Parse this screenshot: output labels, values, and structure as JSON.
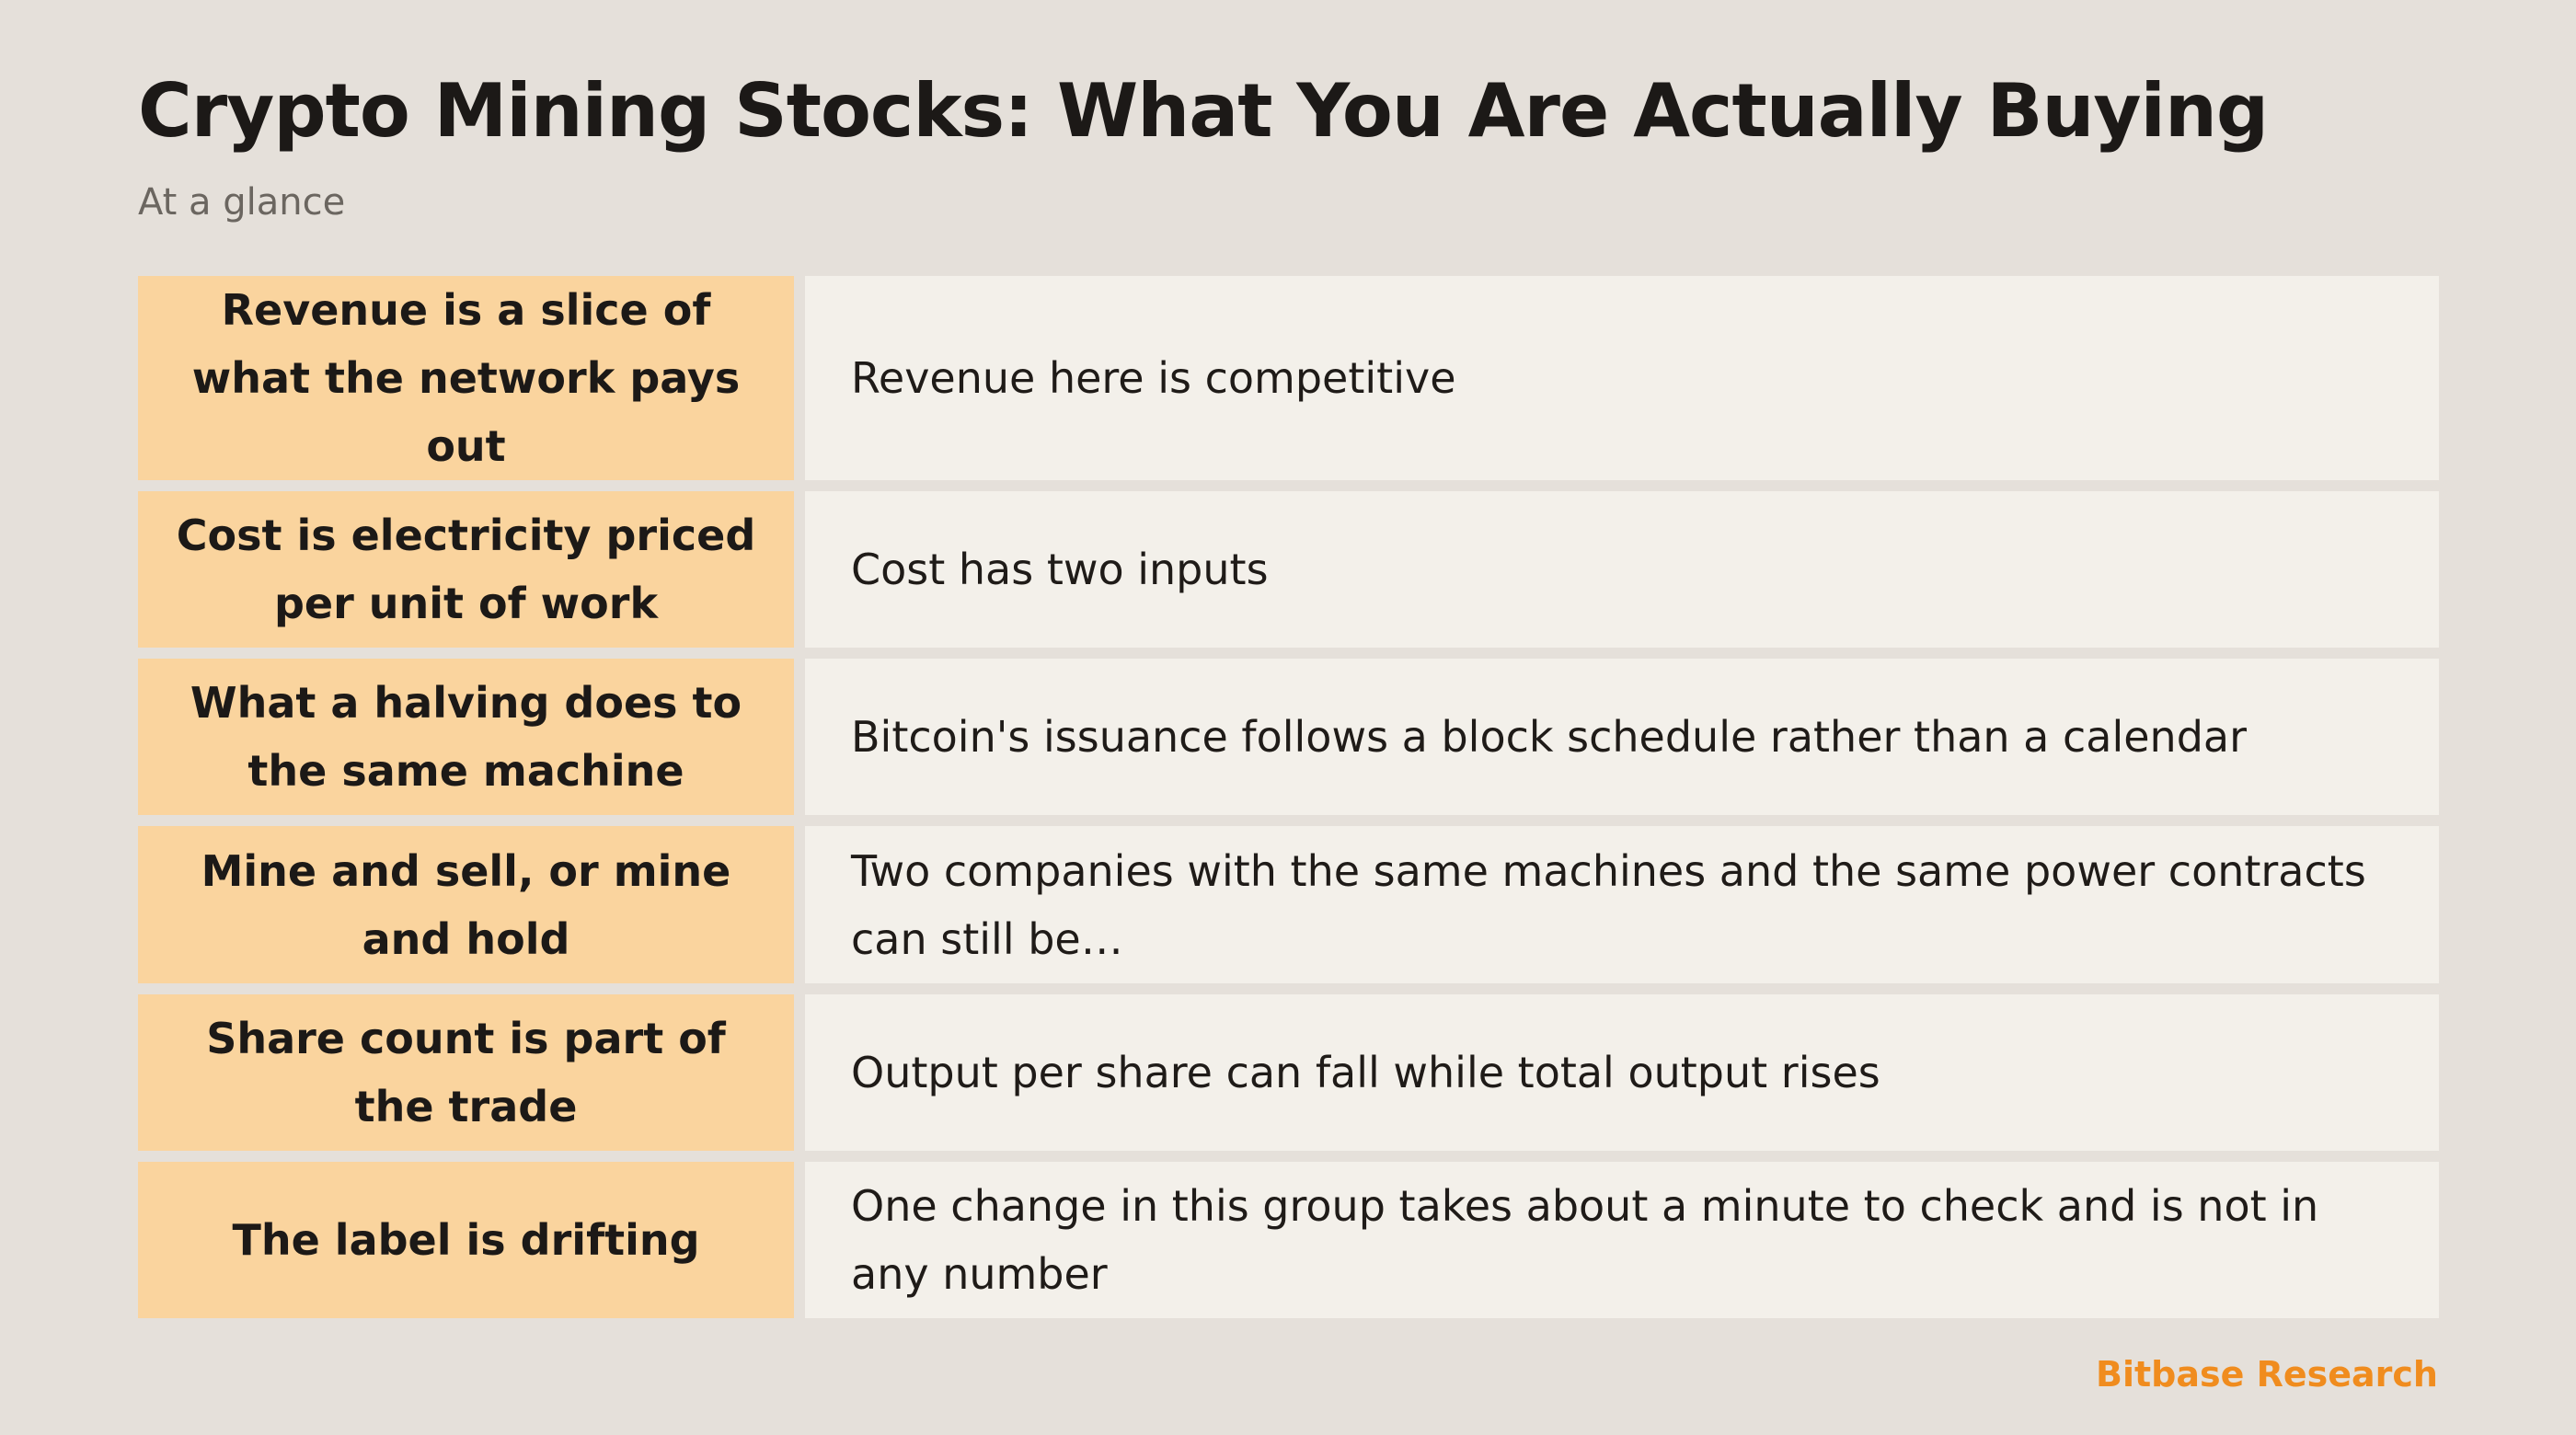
{
  "header": {
    "title": "Crypto Mining Stocks: What You Are Actually Buying",
    "subtitle": "At a glance"
  },
  "rows": [
    {
      "label": "Revenue is a slice of what the network pays out",
      "detail": "Revenue here is competitive"
    },
    {
      "label": "Cost is electricity priced per unit of work",
      "detail": "Cost has two inputs"
    },
    {
      "label": "What a halving does to the same machine",
      "detail": "Bitcoin's issuance follows a block schedule rather than a calendar"
    },
    {
      "label": "Mine and sell, or mine and hold",
      "detail": "Two companies with the same machines and the same power contracts can still be…"
    },
    {
      "label": "Share count is part of the trade",
      "detail": "Output per share can fall while total output rises"
    },
    {
      "label": "The label is drifting",
      "detail": "One change in this group takes about a minute to check and is not in any number"
    }
  ],
  "footer": {
    "brand": "Bitbase Research"
  },
  "colors": {
    "background": "#e5e0da",
    "label_cell": "#fad49e",
    "detail_cell": "#f3f0ea",
    "brand_accent": "#f08c1e"
  }
}
